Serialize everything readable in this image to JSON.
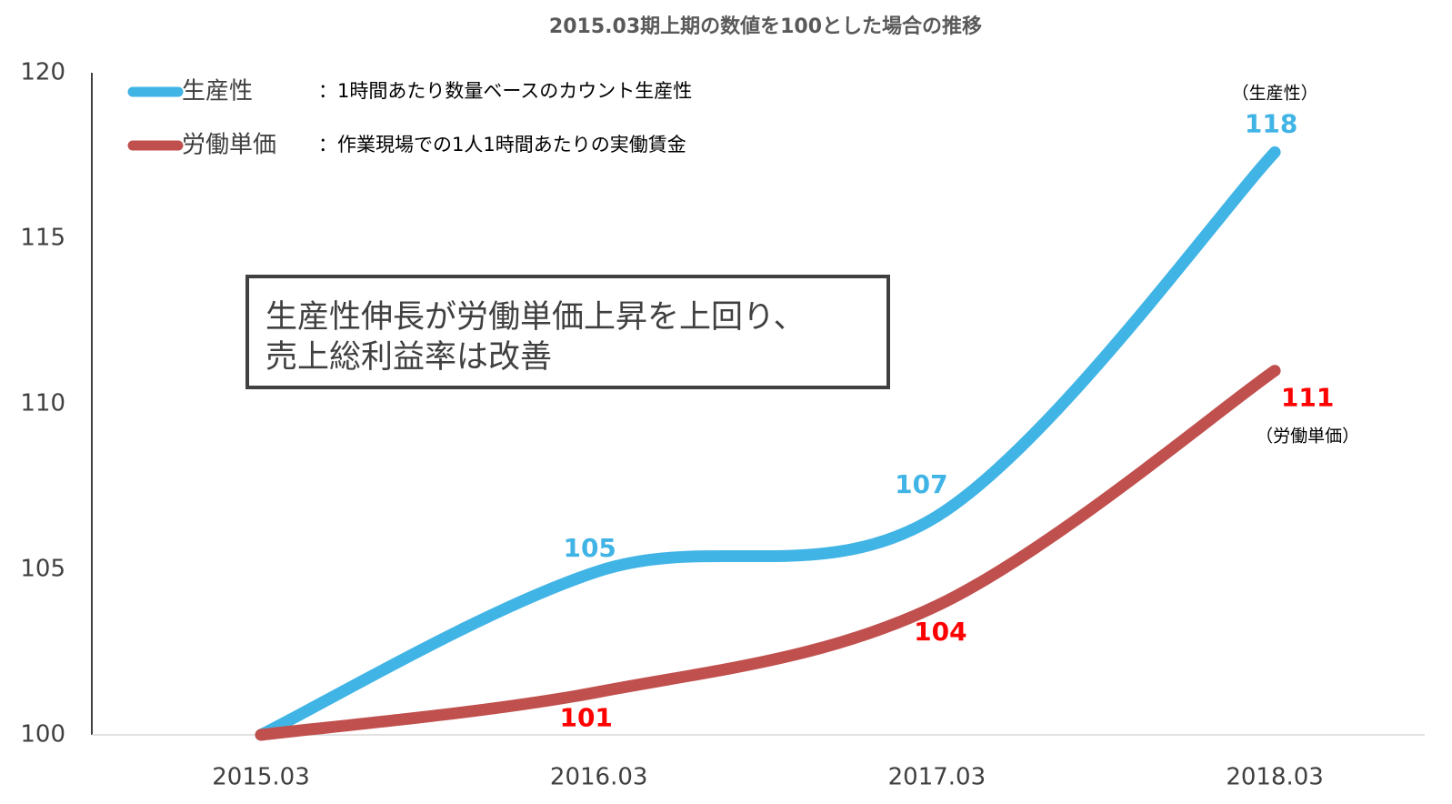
{
  "chart_data": {
    "type": "line",
    "title": "2015.03期上期の数値を100とした場合の推移",
    "categories": [
      "2015.03",
      "2016.03",
      "2017.03",
      "2018.03"
    ],
    "series": [
      {
        "name": "生産性",
        "description": "：1時間あたり数量ベースのカウント生産性",
        "end_label": "（生産性）",
        "color": "#41b4e6",
        "label_color": "#41b4e6",
        "values": [
          100,
          104.95,
          106.6,
          117.6
        ],
        "value_labels": [
          null,
          "105",
          "107",
          "118"
        ]
      },
      {
        "name": "労働単価",
        "description": "：作業現場での1人1時間あたりの実働賃金",
        "end_label": "（労働単価）",
        "color": "#c0504d",
        "label_color": "#ff0000",
        "values": [
          100,
          101.3,
          103.9,
          111.0
        ],
        "value_labels": [
          null,
          "101",
          "104",
          "111"
        ]
      }
    ],
    "annotation": [
      "生産性伸長が労働単価上昇を上回り、",
      "売上総利益率は改善"
    ],
    "ylim": [
      100,
      120
    ],
    "yticks": [
      100,
      105,
      110,
      115,
      120
    ],
    "grid": false
  }
}
